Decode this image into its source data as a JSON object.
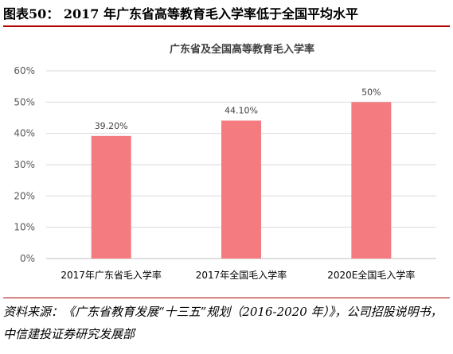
{
  "figure": {
    "title": "图表50：  2017 年广东省高等教育毛入学率低于全国平均水平",
    "source": "资料来源：《广东省教育发展“十三五”规划（2016-2020 年）》，公司招股说明书，中信建投证券研究发展部"
  },
  "colors": {
    "bar": "#f47b7f",
    "rule": "#b00000",
    "grid": "#d9d9d9",
    "axis": "#bfbfbf"
  },
  "chart_data": {
    "type": "bar",
    "title": "广东省及全国高等教育毛入学率",
    "categories": [
      "2017年广东省毛入学率",
      "2017年全国毛入学率",
      "2020E全国毛入学率"
    ],
    "values": [
      39.2,
      44.1,
      50
    ],
    "data_labels": [
      "39.20%",
      "44.10%",
      "50%"
    ],
    "y_ticks": [
      "0%",
      "10%",
      "20%",
      "30%",
      "40%",
      "50%",
      "60%"
    ],
    "ylim": [
      0,
      60
    ],
    "xlabel": "",
    "ylabel": "",
    "grid": true,
    "legend": "none"
  }
}
